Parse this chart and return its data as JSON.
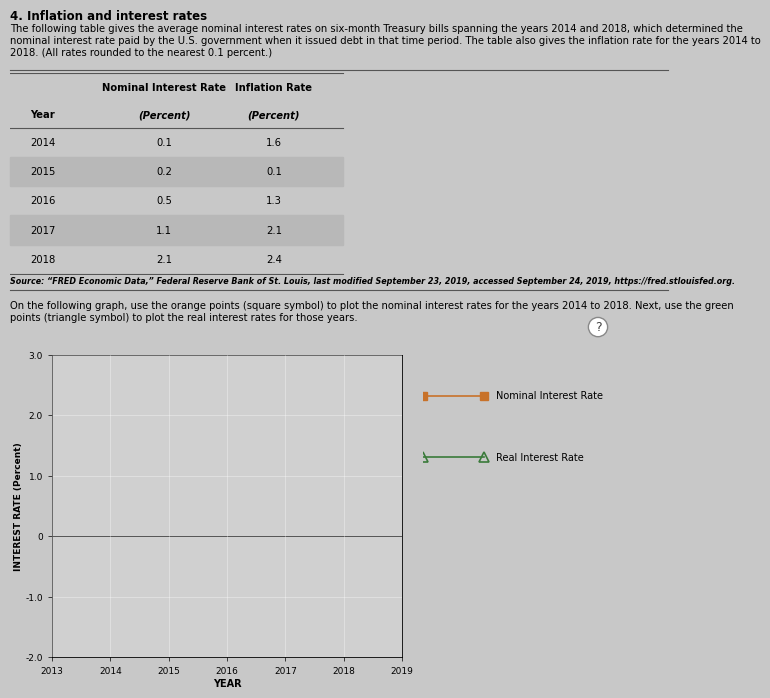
{
  "title": "4. Inflation and interest rates",
  "intro_line1": "The following table gives the average nominal interest rates on six-month Treasury bills spanning the years 2014 and 2018, which determined the",
  "intro_line2": "nominal interest rate paid by the U.S. government when it issued debt in that time period. The table also gives the inflation rate for the years 2014 to",
  "intro_line3": "2018. (All rates rounded to the nearest 0.1 percent.)",
  "table_headers_row1": [
    "",
    "Nominal Interest Rate",
    "Inflation Rate"
  ],
  "table_headers_row2": [
    "Year",
    "(Percent)",
    "(Percent)"
  ],
  "table_data": [
    [
      "2014",
      "0.1",
      "1.6"
    ],
    [
      "2015",
      "0.2",
      "0.1"
    ],
    [
      "2016",
      "0.5",
      "1.3"
    ],
    [
      "2017",
      "1.1",
      "2.1"
    ],
    [
      "2018",
      "2.1",
      "2.4"
    ]
  ],
  "source_text": "Source: “FRED Economic Data,” Federal Reserve Bank of St. Louis, last modified September 23, 2019, accessed September 24, 2019, https://fred.stlouisfed.org.",
  "graph_instruction1": "On the following graph, use the orange points (square symbol) to plot the nominal interest rates for the years 2014 to 2018. Next, use the green",
  "graph_instruction2": "points (triangle symbol) to plot the real interest rates for those years.",
  "xlabel": "YEAR",
  "ylabel": "INTEREST RATE (Percent)",
  "xlim": [
    2013,
    2019
  ],
  "ylim": [
    -2.0,
    3.0
  ],
  "yticks": [
    -2.0,
    -1.0,
    0,
    1.0,
    2.0,
    3.0
  ],
  "ytick_labels": [
    "-2.0",
    "-1.0",
    "0",
    "1.0",
    "2.0",
    "3.0"
  ],
  "xticks": [
    2013,
    2014,
    2015,
    2016,
    2017,
    2018,
    2019
  ],
  "nominal_color": "#C8722A",
  "real_color": "#3A7A3A",
  "bg_color": "#c8c8c8",
  "plot_bg_color": "#d0d0d0",
  "legend_nominal": "Nominal Interest Rate",
  "legend_real": "Real Interest Rate",
  "row_shade_color": "#b8b8b8",
  "table_line_color": "#555555"
}
